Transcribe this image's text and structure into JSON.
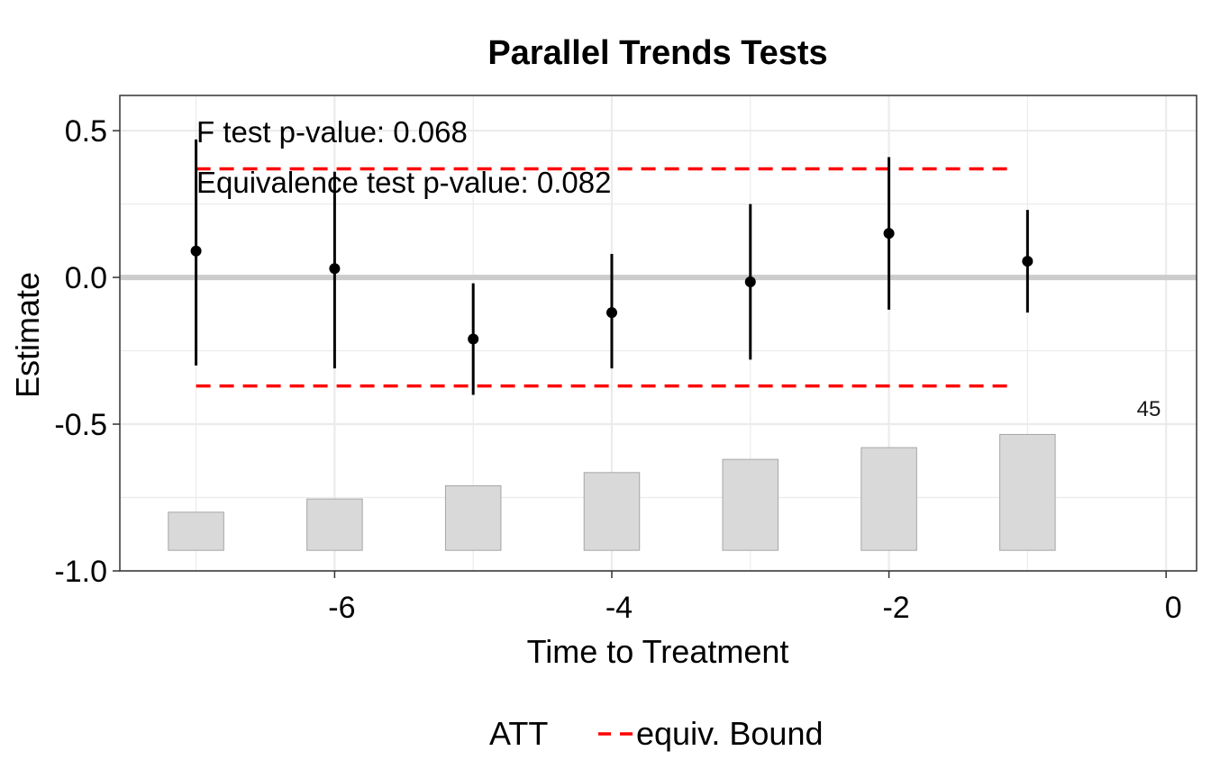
{
  "chart_data": {
    "type": "scatter",
    "title": "Parallel Trends Tests",
    "xlabel": "Time to Treatment",
    "ylabel": "Estimate",
    "xlim": [
      -7.55,
      0.22
    ],
    "ylim": [
      -1.0,
      0.62
    ],
    "x_ticks": [
      -6,
      -4,
      -2,
      0
    ],
    "x_tick_labels": [
      "-6",
      "-4",
      "-2",
      "0"
    ],
    "y_ticks": [
      0.5,
      0.0,
      -0.5,
      -1.0
    ],
    "y_tick_labels": [
      "0.5",
      "0.0",
      "-0.5",
      "-1.0"
    ],
    "grid": true,
    "series": [
      {
        "name": "ATT",
        "x": [
          -7,
          -6,
          -5,
          -4,
          -3,
          -2,
          -1
        ],
        "estimate": [
          0.09,
          0.03,
          -0.21,
          -0.12,
          -0.015,
          0.15,
          0.055
        ],
        "ci_lower": [
          -0.3,
          -0.31,
          -0.4,
          -0.31,
          -0.28,
          -0.11,
          -0.12
        ],
        "ci_upper": [
          0.47,
          0.36,
          -0.02,
          0.08,
          0.25,
          0.41,
          0.23
        ]
      }
    ],
    "equivalence_bound": {
      "name": "equiv. Bound",
      "upper": 0.37,
      "lower": -0.37,
      "x_range": [
        -7,
        -1.1
      ]
    },
    "reference_line": 0.0,
    "count_bars": {
      "x": [
        -7,
        -6,
        -5,
        -4,
        -3,
        -2,
        -1
      ],
      "bottom": -0.93,
      "top": [
        -0.8,
        -0.755,
        -0.71,
        -0.665,
        -0.62,
        -0.58,
        -0.535
      ]
    },
    "annotations": [
      "F test p-value: 0.068",
      "Equivalence test p-value: 0.082"
    ],
    "count_label": "45",
    "legend_placement": "bottom",
    "colors": {
      "points": "#000000",
      "equiv_bound": "#ff0000",
      "bars_fill": "#d9d9d9",
      "bars_stroke": "#a6a6a6",
      "grid": "#ebebeb",
      "zero_line": "#cccccc"
    }
  }
}
